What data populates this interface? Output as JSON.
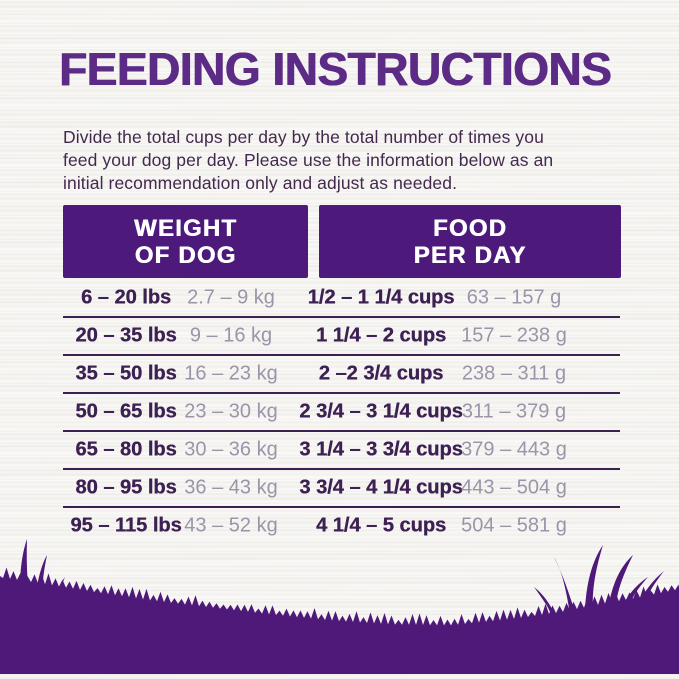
{
  "page": {
    "title": "FEEDING INSTRUCTIONS",
    "intro": {
      "line1": "Divide the total cups per day by the total number of times you",
      "line2": "feed your dog per day. Please use the information below as an",
      "line3": "initial recommendation only and adjust as needed."
    }
  },
  "table": {
    "headers": {
      "weight": {
        "line1": "WEIGHT",
        "line2": "OF DOG"
      },
      "food": {
        "line1": "FOOD",
        "line2": "PER DAY"
      }
    },
    "rows": [
      {
        "lbs": "6 – 20 lbs",
        "kg": "2.7 – 9 kg",
        "cups": "1/2 – 1 1/4 cups",
        "grams": "63 – 157 g"
      },
      {
        "lbs": "20 – 35 lbs",
        "kg": "9 – 16 kg",
        "cups": "1 1/4 – 2 cups",
        "grams": "157 – 238 g"
      },
      {
        "lbs": "35 – 50 lbs",
        "kg": "16 – 23 kg",
        "cups": "2 –2 3/4 cups",
        "grams": "238 – 311 g"
      },
      {
        "lbs": "50 – 65 lbs",
        "kg": "23 – 30 kg",
        "cups": "2 3/4 – 3 1/4 cups",
        "grams": "311 – 379 g"
      },
      {
        "lbs": "65 – 80 lbs",
        "kg": "30 – 36 kg",
        "cups": "3 1/4 – 3 3/4 cups",
        "grams": "379 – 443 g"
      },
      {
        "lbs": "80 – 95 lbs",
        "kg": "36 – 43 kg",
        "cups": "3 3/4 – 4 1/4 cups",
        "grams": "443 – 504 g"
      },
      {
        "lbs": "95 – 115 lbs",
        "kg": "43 – 52 kg",
        "cups": "4 1/4 – 5 cups",
        "grams": "504 – 581 g"
      }
    ]
  },
  "colors": {
    "title_purple": "#5b2b86",
    "header_purple": "#4d1a7b",
    "grass_purple": "#4f197a",
    "dark_text": "#3d2153",
    "gray_text": "#9c94a8",
    "divider": "#3a2150",
    "background": "#f3f2ef"
  }
}
